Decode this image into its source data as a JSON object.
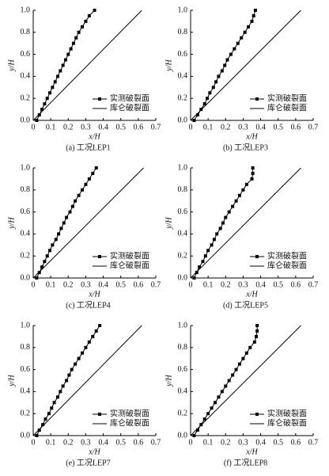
{
  "chart_data": [
    {
      "type": "line",
      "caption": "(a) 工况LEP1",
      "xlabel": "x/H",
      "ylabel": "y/H",
      "xlim": [
        0,
        0.7
      ],
      "ylim": [
        0,
        1
      ],
      "xticks": [
        0,
        0.1,
        0.2,
        0.3,
        0.4,
        0.5,
        0.6,
        0.7
      ],
      "yticks": [
        {
          "value": 0,
          "label": "0.0"
        },
        0.2,
        0.4,
        0.6,
        0.8,
        {
          "value": 1,
          "label": "1.0"
        }
      ],
      "series": [
        {
          "name": "实测破裂面",
          "color": "#000000",
          "marker": "square",
          "x": [
            0.02,
            0.035,
            0.05,
            0.065,
            0.08,
            0.095,
            0.11,
            0.125,
            0.14,
            0.155,
            0.17,
            0.185,
            0.2,
            0.215,
            0.23,
            0.245,
            0.26,
            0.28,
            0.3,
            0.32,
            0.35
          ],
          "values": [
            0,
            0.05,
            0.1,
            0.15,
            0.2,
            0.25,
            0.3,
            0.35,
            0.4,
            0.45,
            0.5,
            0.55,
            0.6,
            0.65,
            0.7,
            0.75,
            0.8,
            0.85,
            0.9,
            0.95,
            1
          ]
        },
        {
          "name": "库仑破裂面",
          "color": "#000000",
          "x": [
            0,
            0.62
          ],
          "values": [
            0,
            1
          ]
        }
      ]
    },
    {
      "type": "line",
      "caption": "(b) 工况LEP3",
      "xlabel": "x/H",
      "ylabel": "y/H",
      "xlim": [
        0,
        0.7
      ],
      "ylim": [
        0,
        1
      ],
      "xticks": [
        0,
        0.1,
        0.2,
        0.3,
        0.4,
        0.5,
        0.6,
        0.7
      ],
      "yticks": [
        {
          "value": 0,
          "label": "0.0"
        },
        0.2,
        0.4,
        0.6,
        0.8,
        {
          "value": 1,
          "label": "1.0"
        }
      ],
      "series": [
        {
          "name": "实测破裂面",
          "color": "#000000",
          "marker": "square",
          "x": [
            0.02,
            0.04,
            0.06,
            0.08,
            0.095,
            0.11,
            0.13,
            0.145,
            0.16,
            0.18,
            0.195,
            0.21,
            0.23,
            0.25,
            0.27,
            0.29,
            0.31,
            0.33,
            0.35,
            0.36,
            0.37
          ],
          "values": [
            0,
            0.05,
            0.1,
            0.15,
            0.2,
            0.25,
            0.3,
            0.35,
            0.4,
            0.45,
            0.5,
            0.55,
            0.6,
            0.65,
            0.7,
            0.75,
            0.8,
            0.85,
            0.9,
            0.95,
            1
          ]
        },
        {
          "name": "库仑破裂面",
          "color": "#000000",
          "x": [
            0,
            0.63
          ],
          "values": [
            0,
            1
          ]
        }
      ]
    },
    {
      "type": "line",
      "caption": "(c) 工况LEP4",
      "xlabel": "x/H",
      "ylabel": "y/H",
      "xlim": [
        0,
        0.7
      ],
      "ylim": [
        0,
        1
      ],
      "xticks": [
        0,
        0.1,
        0.2,
        0.3,
        0.4,
        0.5,
        0.6,
        0.7
      ],
      "yticks": [
        {
          "value": 0,
          "label": "0.0"
        },
        0.2,
        0.4,
        0.6,
        0.8,
        {
          "value": 1,
          "label": "1.0"
        }
      ],
      "series": [
        {
          "name": "实测破裂面",
          "color": "#000000",
          "marker": "square",
          "x": [
            0.02,
            0.035,
            0.05,
            0.065,
            0.08,
            0.095,
            0.11,
            0.13,
            0.145,
            0.16,
            0.175,
            0.19,
            0.21,
            0.225,
            0.24,
            0.26,
            0.28,
            0.3,
            0.32,
            0.34,
            0.36
          ],
          "values": [
            0,
            0.05,
            0.1,
            0.15,
            0.2,
            0.25,
            0.3,
            0.35,
            0.4,
            0.45,
            0.5,
            0.55,
            0.6,
            0.65,
            0.7,
            0.75,
            0.8,
            0.85,
            0.9,
            0.95,
            1
          ]
        },
        {
          "name": "库仑破裂面",
          "color": "#000000",
          "x": [
            0,
            0.63
          ],
          "values": [
            0,
            1
          ]
        }
      ]
    },
    {
      "type": "line",
      "caption": "(d) 工况LEP5",
      "xlabel": "x/H",
      "ylabel": "y/H",
      "xlim": [
        0,
        0.7
      ],
      "ylim": [
        0,
        1
      ],
      "xticks": [
        0,
        0.1,
        0.2,
        0.3,
        0.4,
        0.5,
        0.6,
        0.7
      ],
      "yticks": [
        {
          "value": 0,
          "label": "0.0"
        },
        0.2,
        0.4,
        0.6,
        0.8,
        {
          "value": 1,
          "label": "1.0"
        }
      ],
      "series": [
        {
          "name": "实测破裂面",
          "color": "#000000",
          "marker": "square",
          "x": [
            0.02,
            0.035,
            0.05,
            0.07,
            0.085,
            0.1,
            0.12,
            0.135,
            0.15,
            0.17,
            0.185,
            0.2,
            0.22,
            0.24,
            0.26,
            0.28,
            0.3,
            0.32,
            0.35,
            0.355,
            0.355
          ],
          "values": [
            0,
            0.05,
            0.1,
            0.15,
            0.2,
            0.25,
            0.3,
            0.35,
            0.4,
            0.45,
            0.5,
            0.55,
            0.6,
            0.65,
            0.7,
            0.75,
            0.8,
            0.85,
            0.9,
            0.95,
            1
          ]
        },
        {
          "name": "库仑破裂面",
          "color": "#000000",
          "x": [
            0,
            0.63
          ],
          "values": [
            0,
            1
          ]
        }
      ]
    },
    {
      "type": "line",
      "caption": "(e) 工况LEP7",
      "xlabel": "x/H",
      "ylabel": "y/H",
      "xlim": [
        0,
        0.7
      ],
      "ylim": [
        0,
        1
      ],
      "xticks": [
        0,
        0.1,
        0.2,
        0.3,
        0.4,
        0.5,
        0.6,
        0.7
      ],
      "yticks": [
        {
          "value": 0,
          "label": "0.0"
        },
        0.2,
        0.4,
        0.6,
        0.8,
        {
          "value": 1,
          "label": "1.0"
        }
      ],
      "series": [
        {
          "name": "实测破裂面",
          "color": "#000000",
          "marker": "square",
          "x": [
            0.02,
            0.035,
            0.055,
            0.07,
            0.09,
            0.105,
            0.12,
            0.14,
            0.155,
            0.17,
            0.19,
            0.205,
            0.22,
            0.24,
            0.26,
            0.28,
            0.3,
            0.32,
            0.34,
            0.36,
            0.38
          ],
          "values": [
            0,
            0.05,
            0.1,
            0.15,
            0.2,
            0.25,
            0.3,
            0.35,
            0.4,
            0.45,
            0.5,
            0.55,
            0.6,
            0.65,
            0.7,
            0.75,
            0.8,
            0.85,
            0.9,
            0.95,
            1
          ]
        },
        {
          "name": "库仑破裂面",
          "color": "#000000",
          "x": [
            0,
            0.62
          ],
          "values": [
            0,
            1
          ]
        }
      ]
    },
    {
      "type": "line",
      "caption": "(f) 工况LEP8",
      "xlabel": "x/H",
      "ylabel": "y/H",
      "xlim": [
        0,
        0.7
      ],
      "ylim": [
        0,
        1
      ],
      "xticks": [
        0,
        0.1,
        0.2,
        0.3,
        0.4,
        0.5,
        0.6,
        0.7
      ],
      "yticks": [
        {
          "value": 0,
          "label": "0.0"
        },
        0.2,
        0.4,
        0.6,
        0.8,
        {
          "value": 1,
          "label": "1.0"
        }
      ],
      "series": [
        {
          "name": "实测破裂面",
          "color": "#000000",
          "marker": "square",
          "x": [
            0.02,
            0.04,
            0.06,
            0.08,
            0.1,
            0.12,
            0.14,
            0.16,
            0.18,
            0.2,
            0.22,
            0.24,
            0.26,
            0.28,
            0.3,
            0.32,
            0.34,
            0.365,
            0.375,
            0.38,
            0.38
          ],
          "values": [
            0,
            0.05,
            0.1,
            0.15,
            0.2,
            0.25,
            0.3,
            0.35,
            0.4,
            0.45,
            0.5,
            0.55,
            0.6,
            0.65,
            0.7,
            0.75,
            0.8,
            0.85,
            0.9,
            0.95,
            1
          ]
        },
        {
          "name": "库仑破裂面",
          "color": "#000000",
          "x": [
            0,
            0.63
          ],
          "values": [
            0,
            1
          ]
        }
      ]
    }
  ]
}
